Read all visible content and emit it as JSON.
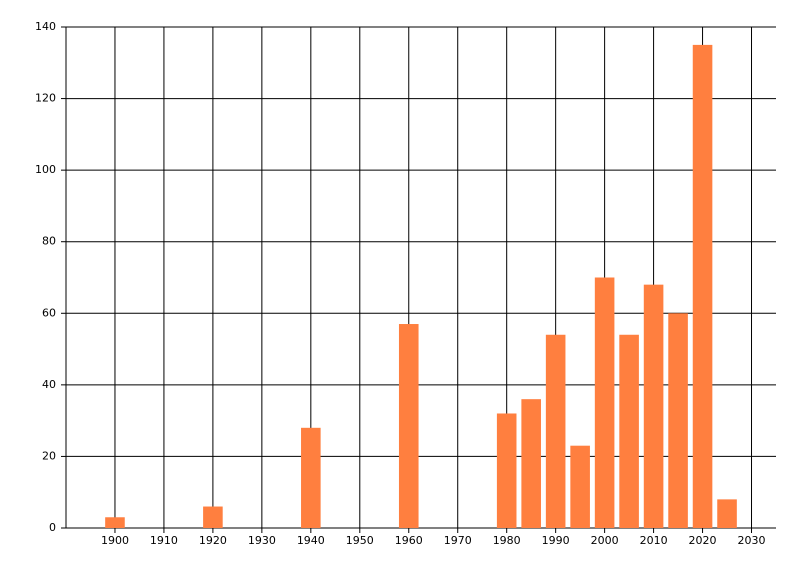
{
  "chart_data": {
    "type": "bar",
    "x": [
      1900,
      1920,
      1940,
      1960,
      1980,
      1985,
      1990,
      1995,
      2000,
      2005,
      2010,
      2015,
      2020,
      2025
    ],
    "values": [
      3,
      6,
      28,
      57,
      32,
      36,
      54,
      23,
      70,
      54,
      68,
      60,
      135,
      8
    ],
    "color": "#ff7f3f",
    "xlim": [
      1890,
      2035
    ],
    "xticks": [
      1900,
      1910,
      1920,
      1930,
      1940,
      1950,
      1960,
      1970,
      1980,
      1990,
      2000,
      2010,
      2020,
      2030
    ],
    "ylim": [
      0,
      140
    ],
    "yticks": [
      0,
      20,
      40,
      60,
      80,
      100,
      120,
      140
    ],
    "grid": true
  }
}
